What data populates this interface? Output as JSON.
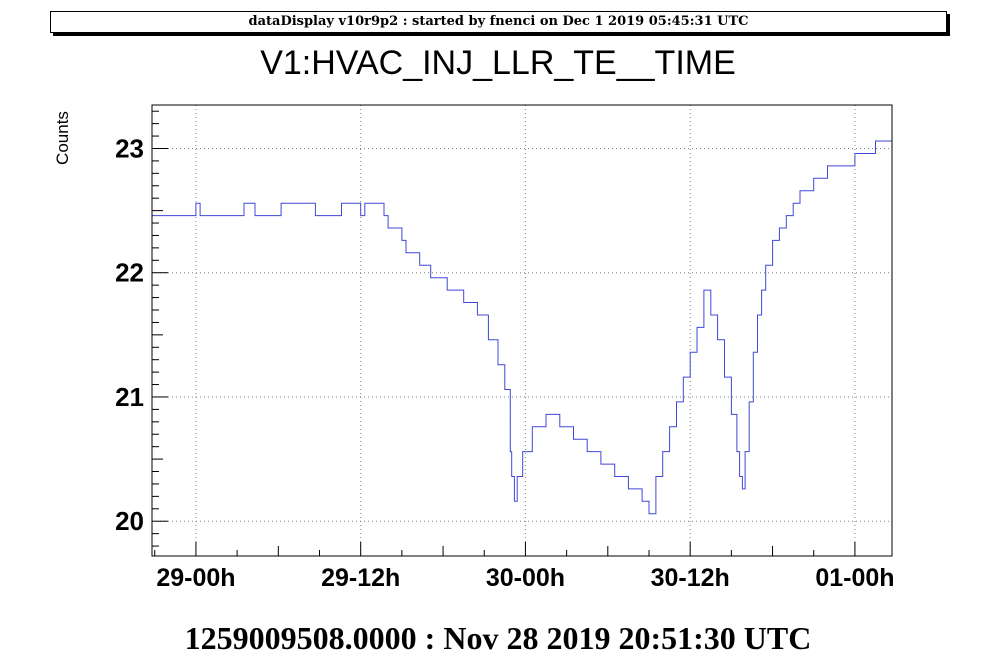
{
  "header": {
    "banner": "dataDisplay v10r9p2 : started by fnenci on Dec  1 2019 05:45:31 UTC",
    "footer": "1259009508.0000 : Nov 28 2019 20:51:30 UTC"
  },
  "colors": {
    "line": "#3f48d8",
    "grid": "#808080",
    "frame": "#000000"
  },
  "chart_data": {
    "type": "line",
    "title": "V1:HVAC_INJ_LLR_TE__TIME",
    "xlabel": "",
    "ylabel": "Counts",
    "x_unit": "hours since 29-00h",
    "xlim": [
      -3.2,
      50.7
    ],
    "ylim": [
      19.72,
      23.35
    ],
    "grid": true,
    "step": true,
    "x_ticks": [
      {
        "value": 0,
        "label": "29-00h"
      },
      {
        "value": 12,
        "label": "29-12h"
      },
      {
        "value": 24,
        "label": "30-00h"
      },
      {
        "value": 36,
        "label": "30-12h"
      },
      {
        "value": 48,
        "label": "01-00h"
      }
    ],
    "y_ticks": [
      {
        "value": 20,
        "label": "20"
      },
      {
        "value": 21,
        "label": "21"
      },
      {
        "value": 22,
        "label": "22"
      },
      {
        "value": 23,
        "label": "23"
      }
    ],
    "series": [
      {
        "name": "",
        "x": [
          -3.2,
          0.0,
          0.3,
          1.0,
          3.5,
          4.0,
          4.3,
          5.9,
          6.2,
          8.7,
          9.0,
          10.3,
          10.6,
          12.0,
          12.3,
          13.2,
          13.7,
          14.0,
          15.0,
          15.3,
          16.3,
          17.1,
          17.6,
          18.3,
          19.0,
          19.5,
          20.5,
          21.3,
          22.0,
          22.5,
          22.9,
          23.0,
          23.2,
          23.4,
          23.8,
          24.5,
          25.5,
          26.5,
          27.5,
          28.5,
          29.5,
          30.5,
          31.5,
          32.5,
          33.0,
          33.5,
          34.0,
          34.5,
          35.0,
          35.5,
          36.0,
          36.5,
          37.0,
          37.5,
          38.0,
          38.5,
          39.0,
          39.4,
          39.6,
          39.8,
          40.0,
          40.3,
          40.6,
          40.9,
          41.2,
          41.5,
          42.0,
          42.5,
          43.0,
          43.5,
          44.0,
          45.0,
          46.0,
          48.0,
          49.5,
          50.7
        ],
        "values": [
          22.46,
          22.56,
          22.46,
          22.46,
          22.56,
          22.56,
          22.46,
          22.46,
          22.56,
          22.46,
          22.46,
          22.46,
          22.56,
          22.46,
          22.56,
          22.56,
          22.46,
          22.36,
          22.26,
          22.16,
          22.06,
          21.96,
          21.96,
          21.86,
          21.86,
          21.76,
          21.66,
          21.46,
          21.26,
          21.06,
          20.56,
          20.36,
          20.16,
          20.36,
          20.56,
          20.76,
          20.86,
          20.76,
          20.66,
          20.56,
          20.46,
          20.36,
          20.26,
          20.16,
          20.06,
          20.36,
          20.56,
          20.76,
          20.96,
          21.16,
          21.36,
          21.56,
          21.86,
          21.66,
          21.46,
          21.16,
          20.86,
          20.56,
          20.36,
          20.26,
          20.56,
          20.96,
          21.36,
          21.66,
          21.86,
          22.06,
          22.26,
          22.36,
          22.46,
          22.56,
          22.66,
          22.76,
          22.86,
          22.96,
          23.06,
          23.06
        ]
      }
    ]
  }
}
